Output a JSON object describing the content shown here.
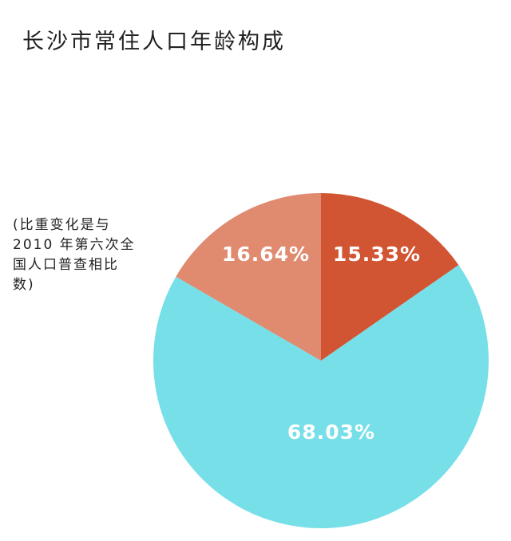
{
  "chart_data": {
    "type": "pie",
    "title": "长沙市常住人口年龄构成",
    "note_lines": [
      "(比重变化是与",
      "2010 年第六次全",
      "国人口普查相比",
      "数)"
    ],
    "slices": [
      {
        "label": "15.33%",
        "value": 15.33,
        "color": "#d25533"
      },
      {
        "label": "68.03%",
        "value": 68.03,
        "color": "#76dfe8"
      },
      {
        "label": "16.64%",
        "value": 16.64,
        "color": "#e08a70"
      }
    ],
    "start_angle_deg": 0,
    "direction": "clockwise",
    "legend": "none"
  }
}
